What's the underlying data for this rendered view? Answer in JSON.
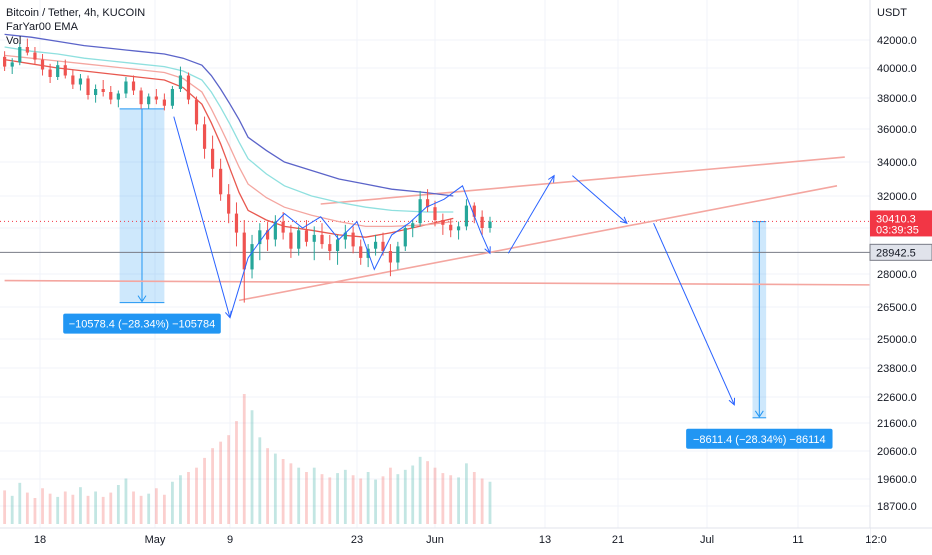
{
  "legend": {
    "symbol": "Bitcoin / Tether, 4h, KUCOIN",
    "indicator": "FarYar00 EMA",
    "volume": "Vol"
  },
  "chart_data": {
    "type": "candlestick",
    "currency_label": "USDT",
    "y_ticks": [
      18700,
      19600,
      20600,
      21600,
      22600,
      23800,
      25000,
      26500,
      28000,
      30000,
      32000,
      34000,
      36000,
      38000,
      40000,
      42000
    ],
    "y_tick_labels": [
      "18700.0",
      "19600.0",
      "20600.0",
      "21600.0",
      "22600.0",
      "23800.0",
      "25000.0",
      "26500.0",
      "28000.0",
      "30000.0",
      "32000.0",
      "34000.0",
      "36000.0",
      "38000.0",
      "40000.0",
      "42000.0"
    ],
    "x_tick_labels": [
      "18",
      "May",
      "9",
      "23",
      "Jun",
      "13",
      "21",
      "Jul",
      "11",
      "12:0"
    ],
    "x_tick_days": [
      -13,
      0,
      8,
      22,
      31,
      43,
      51,
      61,
      71,
      81
    ],
    "x_axis_start": "Apr 17",
    "price_label": {
      "price": "30410.3",
      "countdown": "03:39:35",
      "color": "#f23645"
    },
    "level_label": {
      "price": "28942.5",
      "color": "#787b86"
    },
    "measure_boxes": [
      {
        "text": "−10578.4 (−28.34%) −105784",
        "from_day": -4,
        "to_day": 1,
        "from_price": 37300,
        "to_price": 26700
      },
      {
        "text": "−8611.4 (−28.34%) −86114",
        "from_day": 66,
        "to_day": 67.5,
        "from_price": 30400,
        "to_price": 21800
      }
    ],
    "ohlc": [
      [
        40800,
        41200,
        39800,
        40100
      ],
      [
        40100,
        40700,
        39600,
        40400
      ],
      [
        40400,
        41800,
        40200,
        41500
      ],
      [
        41500,
        42100,
        40900,
        41100
      ],
      [
        41100,
        41500,
        40300,
        40600
      ],
      [
        40600,
        41000,
        39500,
        39900
      ],
      [
        39900,
        40300,
        39000,
        39400
      ],
      [
        39400,
        40500,
        39200,
        40200
      ],
      [
        40200,
        40600,
        39300,
        39500
      ],
      [
        39500,
        39900,
        38600,
        38900
      ],
      [
        38900,
        39600,
        38500,
        39300
      ],
      [
        39300,
        39500,
        37900,
        38200
      ],
      [
        38200,
        38900,
        37700,
        38600
      ],
      [
        38600,
        39200,
        38100,
        38400
      ],
      [
        38400,
        38800,
        37600,
        37900
      ],
      [
        37900,
        38500,
        37400,
        38300
      ],
      [
        38300,
        39400,
        38000,
        39100
      ],
      [
        39100,
        39500,
        38200,
        38500
      ],
      [
        38500,
        38700,
        37300,
        37600
      ],
      [
        37600,
        38300,
        37300,
        38100
      ],
      [
        38100,
        38600,
        37600,
        37900
      ],
      [
        37900,
        38300,
        37200,
        37500
      ],
      [
        37500,
        38800,
        37300,
        38600
      ],
      [
        38600,
        40100,
        38400,
        39500
      ],
      [
        39500,
        39700,
        37600,
        37900
      ],
      [
        37900,
        38100,
        35900,
        36300
      ],
      [
        36300,
        36800,
        34200,
        34800
      ],
      [
        34800,
        35600,
        33100,
        33600
      ],
      [
        33600,
        34200,
        31700,
        32100
      ],
      [
        32100,
        32700,
        30300,
        30900
      ],
      [
        30900,
        31600,
        29200,
        29800
      ],
      [
        29800,
        30500,
        26700,
        28200
      ],
      [
        28200,
        29700,
        27800,
        29300
      ],
      [
        29300,
        30300,
        28600,
        29900
      ],
      [
        29900,
        30400,
        29000,
        29500
      ],
      [
        29500,
        30800,
        29200,
        30400
      ],
      [
        30400,
        31000,
        29500,
        29800
      ],
      [
        29800,
        30200,
        28700,
        29100
      ],
      [
        29100,
        30100,
        28800,
        29900
      ],
      [
        29900,
        30500,
        29200,
        29400
      ],
      [
        29400,
        30100,
        28600,
        29700
      ],
      [
        29700,
        30300,
        29100,
        29300
      ],
      [
        29300,
        29700,
        28600,
        29000
      ],
      [
        29000,
        29700,
        28400,
        29500
      ],
      [
        29500,
        30200,
        29100,
        29800
      ],
      [
        29800,
        30100,
        28900,
        29200
      ],
      [
        29200,
        29500,
        28400,
        28700
      ],
      [
        28700,
        29300,
        28300,
        29100
      ],
      [
        29100,
        29700,
        28800,
        29400
      ],
      [
        29400,
        29800,
        28800,
        29000
      ],
      [
        29000,
        29300,
        27900,
        28500
      ],
      [
        28500,
        29400,
        28200,
        29200
      ],
      [
        29200,
        30200,
        29000,
        30000
      ],
      [
        30000,
        30500,
        29600,
        30300
      ],
      [
        30300,
        32300,
        30100,
        31800
      ],
      [
        31800,
        32400,
        31000,
        31300
      ],
      [
        31300,
        31700,
        30100,
        30500
      ],
      [
        30500,
        30900,
        29700,
        30200
      ],
      [
        30200,
        30600,
        29600,
        29900
      ],
      [
        29900,
        30400,
        29500,
        30100
      ],
      [
        30100,
        31800,
        29900,
        31400
      ],
      [
        31400,
        31600,
        30300,
        30700
      ],
      [
        30700,
        31100,
        29700,
        30000
      ],
      [
        30000,
        30700,
        29800,
        30400
      ]
    ],
    "volume": [
      310,
      260,
      380,
      290,
      240,
      330,
      280,
      250,
      300,
      270,
      340,
      260,
      300,
      250,
      290,
      360,
      420,
      300,
      260,
      280,
      330,
      270,
      390,
      450,
      480,
      520,
      610,
      700,
      760,
      820,
      950,
      1200,
      1050,
      800,
      700,
      650,
      600,
      560,
      520,
      480,
      520,
      460,
      430,
      470,
      500,
      450,
      420,
      480,
      410,
      440,
      520,
      460,
      500,
      540,
      620,
      580,
      520,
      470,
      450,
      430,
      560,
      480,
      420,
      390
    ],
    "ema_series": [
      {
        "name": "ema_fast",
        "color": "#e8584f",
        "values": [
          40600,
          40300,
          40000,
          39800,
          39600,
          39400,
          39200,
          38700,
          37600,
          36400,
          35100,
          33600,
          32200,
          31100,
          30500,
          30100,
          29900,
          29700,
          29600,
          29800,
          30200,
          30600
        ]
      },
      {
        "name": "ema_mid",
        "color": "#f4a6a0",
        "values": [
          40900,
          40700,
          40500,
          40300,
          40100,
          39900,
          39700,
          39300,
          38400,
          37300,
          36100,
          34900,
          33700,
          32700,
          31900,
          31300,
          30800,
          30400,
          30100,
          30100,
          30200,
          30400
        ]
      },
      {
        "name": "ema_slow",
        "color": "#8fe0df",
        "values": [
          41500,
          41200,
          41000,
          40700,
          40500,
          40300,
          40100,
          39800,
          39200,
          38400,
          37400,
          36300,
          35200,
          34200,
          33300,
          32600,
          32000,
          31600,
          31300,
          31100,
          31000,
          31000
        ]
      },
      {
        "name": "ema_long",
        "color": "#5b64c9",
        "values": [
          42400,
          42200,
          41900,
          41600,
          41400,
          41200,
          41000,
          40700,
          40200,
          39500,
          38600,
          37600,
          36600,
          35500,
          34700,
          34000,
          33500,
          33000,
          32700,
          32400,
          32200,
          32000
        ]
      }
    ],
    "ema_days": [
      -17,
      -14,
      -11,
      -8,
      -5,
      -2,
      1,
      3,
      5,
      6,
      7,
      8,
      9,
      10,
      12,
      14,
      17,
      20,
      23,
      26,
      30,
      33
    ],
    "trend_lines": [
      {
        "color": "#f4a6a0",
        "points": [
          [
            -17,
            27700
          ],
          [
            83,
            27500
          ]
        ]
      },
      {
        "color": "#f4a6a0",
        "points": [
          [
            9,
            26800
          ],
          [
            76,
            32600
          ]
        ]
      },
      {
        "color": "#f4a6a0",
        "points": [
          [
            18,
            31500
          ],
          [
            77,
            34300
          ]
        ]
      }
    ],
    "reference_lines": [
      {
        "color": "#f23645",
        "style": "dotted",
        "price": 30410.3
      },
      {
        "color": "#787b86",
        "style": "solid",
        "price": 28942.5
      }
    ],
    "arrows": [
      {
        "points": [
          [
            2,
            36800
          ],
          [
            8,
            26000
          ]
        ]
      },
      {
        "points": [
          [
            8,
            26000
          ],
          [
            10,
            28700
          ],
          [
            12,
            29800
          ],
          [
            14,
            30900
          ],
          [
            16,
            30000
          ],
          [
            18,
            30700
          ],
          [
            20,
            29500
          ],
          [
            22,
            30400
          ],
          [
            24,
            28200
          ],
          [
            26,
            29700
          ],
          [
            28,
            30300
          ],
          [
            30,
            31300
          ],
          [
            32,
            31800
          ],
          [
            34,
            32600
          ],
          [
            36,
            29800
          ],
          [
            37,
            28900
          ]
        ]
      },
      {
        "points": [
          [
            39,
            28900
          ],
          [
            44,
            33200
          ]
        ]
      },
      {
        "points": [
          [
            46,
            33200
          ],
          [
            52,
            30300
          ]
        ]
      },
      {
        "points": [
          [
            55,
            30300
          ],
          [
            64,
            22300
          ]
        ]
      }
    ]
  }
}
